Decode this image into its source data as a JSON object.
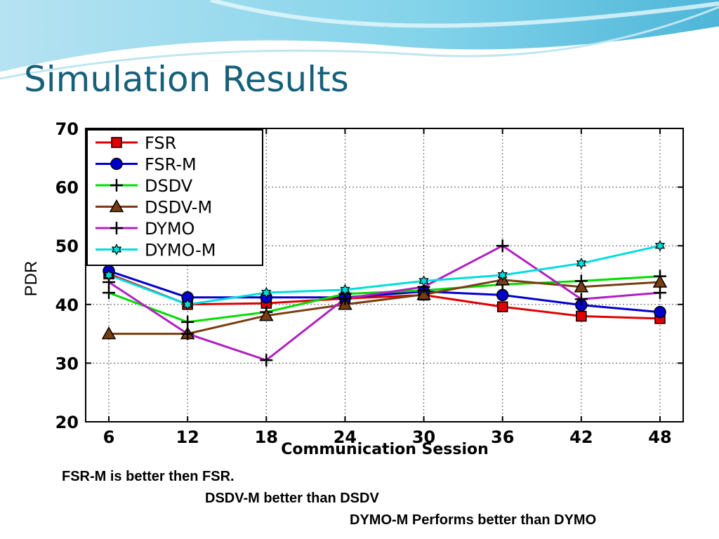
{
  "slide": {
    "title": "Simulation Results"
  },
  "notes": [
    "FSR-M is better then FSR.",
    "DSDV-M better than DSDV",
    "DYMO-M Performs better than DYMO"
  ],
  "chart_data": {
    "type": "line",
    "xlabel": "Communication Session",
    "ylabel": "PDR",
    "x": [
      6,
      12,
      18,
      24,
      30,
      36,
      42,
      48
    ],
    "ylim": [
      20,
      70
    ],
    "yticks": [
      20,
      30,
      40,
      50,
      60,
      70
    ],
    "grid": true,
    "legend_position": "top-left",
    "series": [
      {
        "name": "FSR",
        "color": "#e00000",
        "marker": "square",
        "values": [
          45.2,
          40.0,
          40.2,
          41.0,
          41.6,
          39.6,
          38.0,
          37.6
        ]
      },
      {
        "name": "FSR-M",
        "color": "#0000cc",
        "marker": "circle",
        "values": [
          45.7,
          41.2,
          41.2,
          41.2,
          42.2,
          41.6,
          39.9,
          38.7
        ]
      },
      {
        "name": "DSDV",
        "color": "#00dd00",
        "marker": "plus",
        "values": [
          42.0,
          37.0,
          38.7,
          41.8,
          42.4,
          43.4,
          44.0,
          44.8
        ]
      },
      {
        "name": "DSDV-M",
        "color": "#7a3c10",
        "marker": "triangle",
        "values": [
          35.0,
          35.0,
          38.1,
          40.0,
          41.7,
          44.2,
          43.0,
          43.8
        ]
      },
      {
        "name": "DYMO",
        "color": "#b020c0",
        "marker": "plus",
        "values": [
          43.8,
          35.0,
          30.5,
          41.0,
          43.0,
          50.0,
          40.9,
          42.0
        ]
      },
      {
        "name": "DYMO-M",
        "color": "#00dddd",
        "marker": "star",
        "values": [
          45.0,
          40.0,
          42.0,
          42.5,
          44.0,
          45.0,
          47.0,
          50.0
        ]
      }
    ]
  },
  "colors": {
    "title": "#17607a",
    "wave_dark": "#3aaed0",
    "wave_light": "#c8ecf4"
  }
}
